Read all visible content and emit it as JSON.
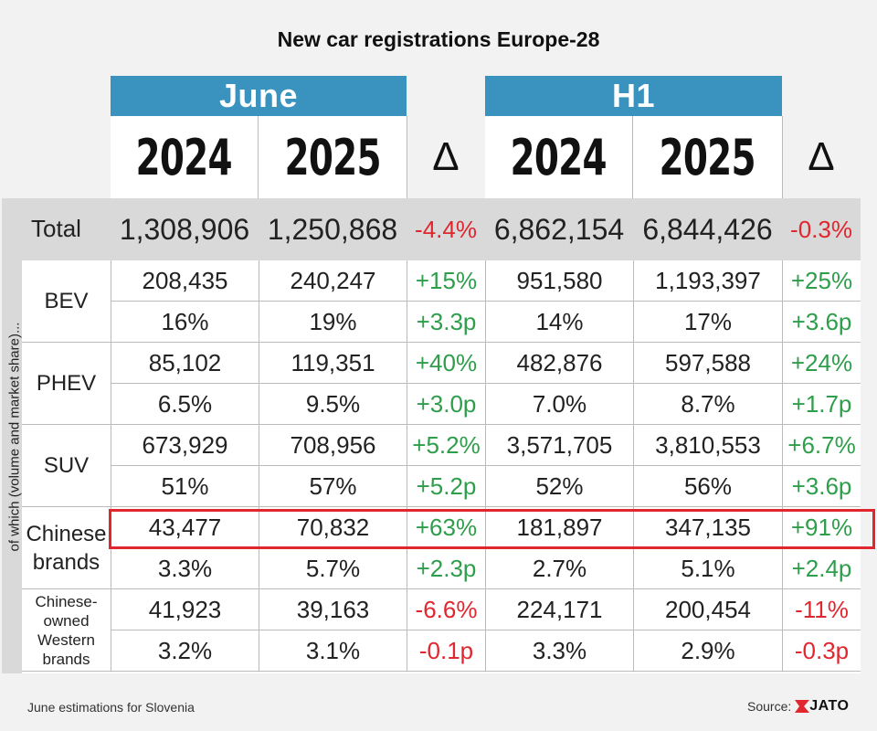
{
  "title": "New car registrations Europe-28",
  "periods": [
    "June",
    "H1"
  ],
  "years": [
    "2024",
    "2025",
    "2024",
    "2025"
  ],
  "delta_symbol": "Δ",
  "side_label": "of which (volume and market share)...",
  "total": {
    "label": "Total",
    "values": [
      "1,308,906",
      "1,250,868",
      "-4.4%",
      "6,862,154",
      "6,844,426",
      "-0.3%"
    ]
  },
  "groups": [
    {
      "label": "BEV",
      "rows": [
        [
          "208,435",
          "240,247",
          "+15%",
          "951,580",
          "1,193,397",
          "+25%"
        ],
        [
          "16%",
          "19%",
          "+3.3p",
          "14%",
          "17%",
          "+3.6p"
        ]
      ]
    },
    {
      "label": "PHEV",
      "rows": [
        [
          "85,102",
          "119,351",
          "+40%",
          "482,876",
          "597,588",
          "+24%"
        ],
        [
          "6.5%",
          "9.5%",
          "+3.0p",
          "7.0%",
          "8.7%",
          "+1.7p"
        ]
      ]
    },
    {
      "label": "SUV",
      "rows": [
        [
          "673,929",
          "708,956",
          "+5.2%",
          "3,571,705",
          "3,810,553",
          "+6.7%"
        ],
        [
          "51%",
          "57%",
          "+5.2p",
          "52%",
          "56%",
          "+3.6p"
        ]
      ]
    },
    {
      "label": "Chinese brands",
      "rows": [
        [
          "43,477",
          "70,832",
          "+63%",
          "181,897",
          "347,135",
          "+91%"
        ],
        [
          "3.3%",
          "5.7%",
          "+2.3p",
          "2.7%",
          "5.1%",
          "+2.4p"
        ]
      ]
    },
    {
      "label": "Chinese-owned Western brands",
      "rows": [
        [
          "41,923",
          "39,163",
          "-6.6%",
          "224,171",
          "200,454",
          "-11%"
        ],
        [
          "3.2%",
          "3.1%",
          "-0.1p",
          "3.3%",
          "2.9%",
          "-0.3p"
        ]
      ]
    }
  ],
  "footnote": "June estimations for Slovenia",
  "source_label": "Source:",
  "source_brand": "JATO",
  "colors": {
    "header_blue": "#3a93bf",
    "negative": "#e0262e",
    "positive": "#2e9e4b",
    "highlight": "#e0262e",
    "total_bg": "#d9d9d9"
  }
}
